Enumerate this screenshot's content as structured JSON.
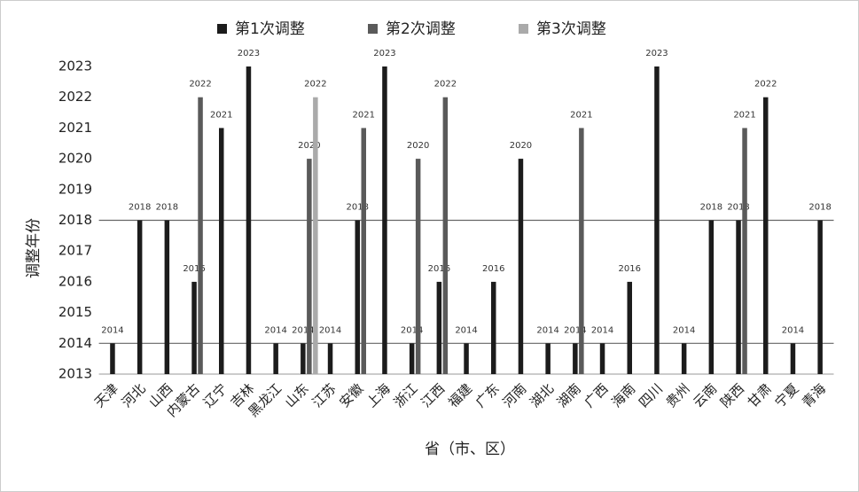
{
  "chart_data": {
    "type": "bar",
    "y_label": "调整年份",
    "x_label": "省（市、区）",
    "categories": [
      "天津",
      "河北",
      "山西",
      "内蒙古",
      "辽宁",
      "吉林",
      "黑龙江",
      "山东",
      "江苏",
      "安徽",
      "上海",
      "浙江",
      "江西",
      "福建",
      "广东",
      "河南",
      "湖北",
      "湖南",
      "广西",
      "海南",
      "四川",
      "贵州",
      "云南",
      "陕西",
      "甘肃",
      "宁夏",
      "青海"
    ],
    "series": [
      {
        "name": "第1次调整",
        "color": "#1c1c1c",
        "values": [
          2014,
          2018,
          2018,
          2016,
          2021,
          2023,
          2014,
          2014,
          2014,
          2018,
          2023,
          2014,
          2016,
          2014,
          2016,
          2020,
          2014,
          2014,
          2014,
          2016,
          2023,
          2014,
          2018,
          2018,
          2022,
          2014,
          2018
        ]
      },
      {
        "name": "第2次调整",
        "color": "#5a5a5a",
        "values": [
          null,
          null,
          null,
          2022,
          null,
          null,
          null,
          2020,
          null,
          2021,
          null,
          2020,
          2022,
          null,
          null,
          null,
          null,
          2021,
          null,
          null,
          null,
          null,
          null,
          2021,
          null,
          null,
          null
        ]
      },
      {
        "name": "第3次调整",
        "color": "#aaaaaa",
        "values": [
          null,
          null,
          null,
          null,
          null,
          null,
          null,
          2022,
          null,
          null,
          null,
          null,
          null,
          null,
          null,
          null,
          null,
          null,
          null,
          null,
          null,
          null,
          null,
          null,
          null,
          null,
          null
        ]
      }
    ],
    "ylim": [
      2013,
      2023
    ],
    "yticks": [
      2013,
      2014,
      2015,
      2016,
      2017,
      2018,
      2019,
      2020,
      2021,
      2022,
      2023
    ],
    "reference_lines": [
      2014,
      2018
    ],
    "data_labels": true
  }
}
